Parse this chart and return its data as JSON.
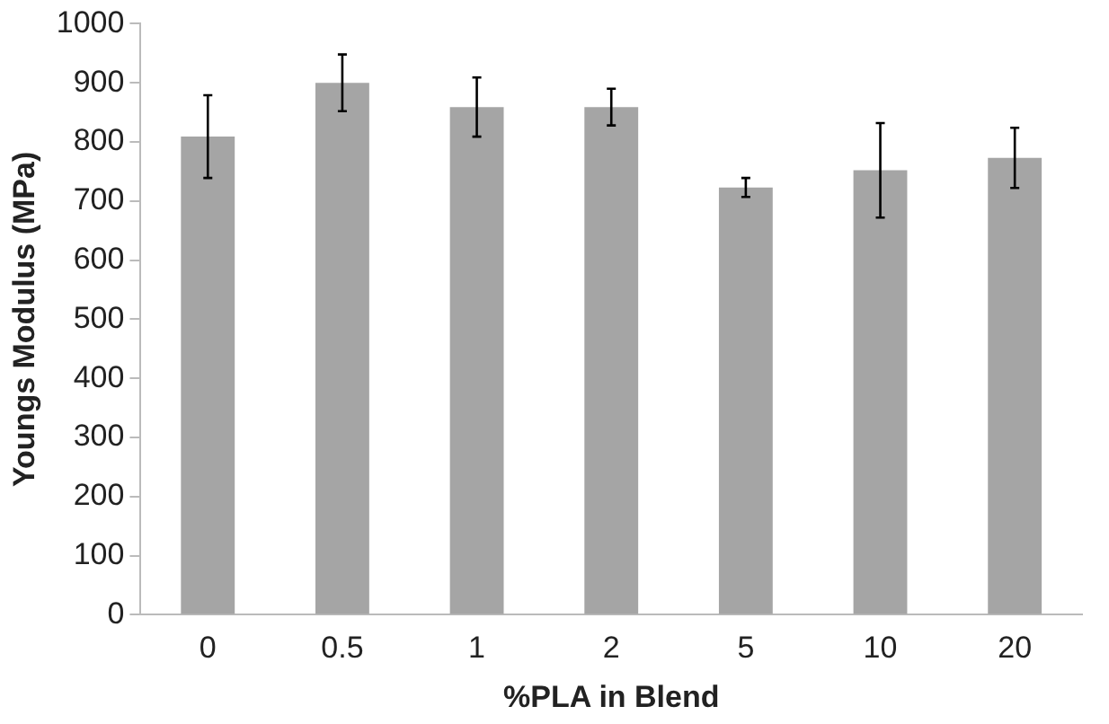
{
  "chart_data": {
    "type": "bar",
    "xlabel": "%PLA in Blend",
    "ylabel": "Youngs Modulus (MPa)",
    "categories": [
      "0",
      "0.5",
      "1",
      "2",
      "5",
      "10",
      "20"
    ],
    "values": [
      809,
      900,
      859,
      859,
      723,
      752,
      773
    ],
    "errors": [
      70,
      48,
      50,
      31,
      16,
      80,
      51
    ],
    "color": "#a5a5a5",
    "ylim": [
      0,
      1000
    ],
    "yticks": [
      0,
      100,
      200,
      300,
      400,
      500,
      600,
      700,
      800,
      900,
      1000
    ],
    "grid": false,
    "legend": false
  }
}
